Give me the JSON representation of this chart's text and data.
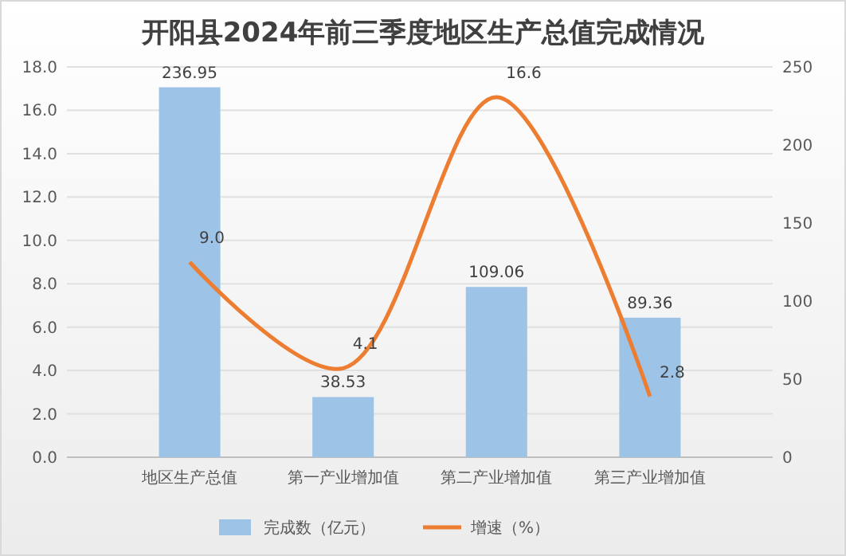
{
  "chart_data": {
    "type": "bar",
    "title": "开阳县2024年前三季度地区生产总值完成情况",
    "categories": [
      "地区生产总值",
      "第一产业增加值",
      "第二产业增加值",
      "第三产业增加值"
    ],
    "series": [
      {
        "name": "完成数（亿元）",
        "axis": "y2",
        "color": "#9dc3e6",
        "values": [
          236.95,
          38.53,
          109.06,
          89.36
        ]
      },
      {
        "name": "增速（%）",
        "type": "line",
        "axis": "y",
        "color": "#ed7d31",
        "values": [
          9.0,
          4.1,
          16.6,
          2.8
        ],
        "value_labels": [
          "9.0",
          "4.1",
          "16.6",
          "2.8"
        ]
      }
    ],
    "ylim": [
      0,
      18
    ],
    "yticks": [
      {
        "value": 0,
        "label": "0.0"
      },
      {
        "value": 2,
        "label": "2.0"
      },
      {
        "value": 4,
        "label": "4.0"
      },
      {
        "value": 6,
        "label": "6.0"
      },
      {
        "value": 8,
        "label": "8.0"
      },
      {
        "value": 10,
        "label": "10.0"
      },
      {
        "value": 12,
        "label": "12.0"
      },
      {
        "value": 14,
        "label": "14.0"
      },
      {
        "value": 16,
        "label": "16.0"
      },
      {
        "value": 18,
        "label": "18.0"
      }
    ],
    "y2lim": [
      0,
      250
    ],
    "y2ticks": [
      0,
      50,
      100,
      150,
      200,
      250
    ],
    "grid": "y",
    "legend": "bottom",
    "data_labels": true,
    "marker": "none",
    "line_style": "solid"
  }
}
